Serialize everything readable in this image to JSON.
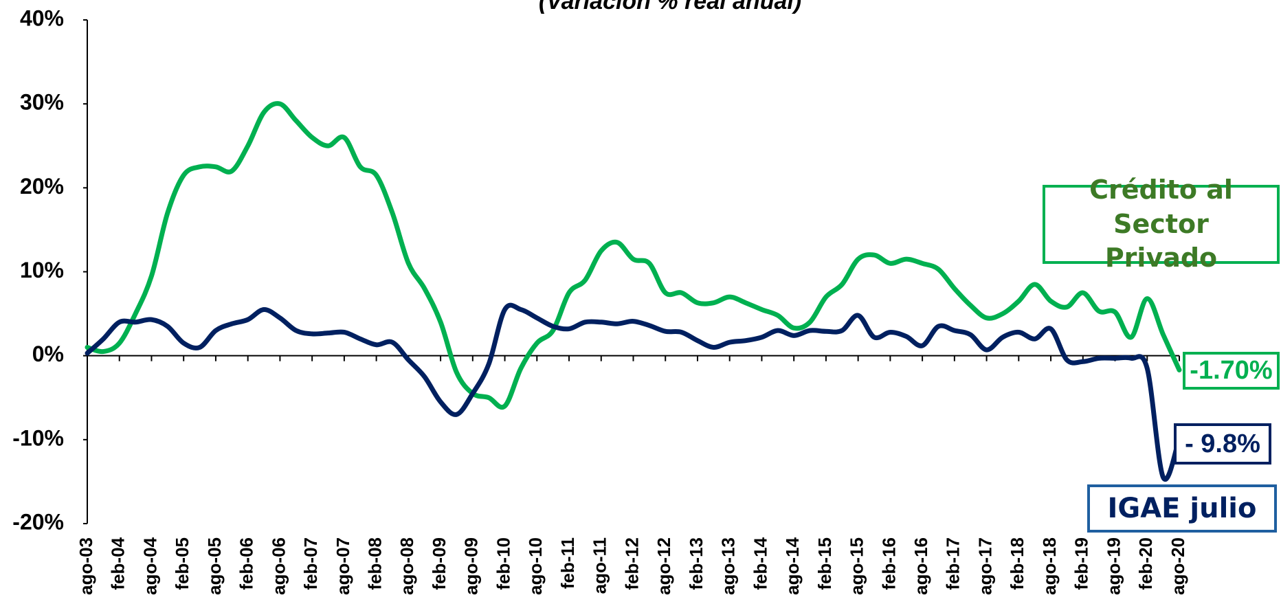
{
  "chart_data": {
    "type": "line",
    "subtitle": "(Variación % real anual)",
    "categories": [
      "ago-03",
      null,
      "feb-04",
      null,
      "ago-04",
      null,
      "feb-05",
      null,
      "ago-05",
      null,
      "feb-06",
      null,
      "ago-06",
      null,
      "feb-07",
      null,
      "ago-07",
      null,
      "feb-08",
      null,
      "ago-08",
      null,
      "feb-09",
      null,
      "ago-09",
      null,
      "feb-10",
      null,
      "ago-10",
      null,
      "feb-11",
      null,
      "ago-11",
      null,
      "feb-12",
      null,
      "ago-12",
      null,
      "feb-13",
      null,
      "ago-13",
      null,
      "feb-14",
      null,
      "ago-14",
      null,
      "feb-15",
      null,
      "ago-15",
      null,
      "feb-16",
      null,
      "ago-16",
      null,
      "feb-17",
      null,
      "ago-17",
      null,
      "feb-18",
      null,
      "ago-18",
      null,
      "feb-19",
      null,
      "ago-19",
      null,
      "feb-20",
      null,
      "ago-20"
    ],
    "series": [
      {
        "name": "Crédito al Sector Privado",
        "color": "#00b050",
        "label_color": "#3d7a26",
        "values": [
          1,
          0.5,
          1.5,
          5,
          9.5,
          17,
          21.5,
          22.5,
          22.5,
          22,
          25,
          29,
          30,
          28,
          26,
          25,
          26,
          22.5,
          21.5,
          17,
          11,
          8,
          4,
          -2,
          -4.5,
          -5,
          -6,
          -1.5,
          1.5,
          3,
          7.5,
          9,
          12.5,
          13.5,
          11.5,
          11,
          7.5,
          7.5,
          6.3,
          6.3,
          7,
          6.3,
          5.5,
          4.8,
          3.3,
          4,
          7,
          8.5,
          11.5,
          12,
          11,
          11.5,
          11,
          10.3,
          8,
          6,
          4.5,
          5,
          6.5,
          8.5,
          6.5,
          5.8,
          7.5,
          5.3,
          5.2,
          2.2,
          6.8,
          2.5,
          -1.7
        ],
        "value_labels": [
          null,
          null,
          null,
          null,
          null,
          null,
          null,
          null,
          null,
          null,
          null,
          null,
          null,
          null,
          null,
          null,
          null,
          null,
          null,
          null,
          null,
          null,
          null,
          null,
          null,
          null,
          null,
          null,
          null,
          null,
          null,
          null,
          null,
          null,
          null,
          null,
          null,
          null,
          null,
          null,
          null,
          null,
          null,
          null,
          null,
          null,
          null,
          null,
          null,
          null,
          null,
          null,
          null,
          null,
          null,
          null,
          null,
          null,
          null,
          null,
          null,
          null,
          null,
          null,
          null,
          null,
          null,
          null,
          "-1.70%"
        ]
      },
      {
        "name": "IGAE julio",
        "color": "#002060",
        "label_color": "#002060",
        "box_color": "#1f5fa0",
        "values": [
          0.3,
          2,
          4,
          4,
          4.3,
          3.5,
          1.5,
          1,
          3,
          3.8,
          4.3,
          5.5,
          4.5,
          3,
          2.6,
          2.7,
          2.8,
          2,
          1.3,
          1.6,
          -0.5,
          -2.5,
          -5.5,
          -7,
          -4.5,
          -1,
          5.5,
          5.5,
          4.5,
          3.5,
          3.2,
          4,
          4,
          3.8,
          4.1,
          3.6,
          2.9,
          2.8,
          1.8,
          1,
          1.6,
          1.8,
          2.2,
          3,
          2.4,
          3,
          2.9,
          3,
          4.8,
          2.2,
          2.8,
          2.3,
          1.2,
          3.5,
          3,
          2.5,
          0.7,
          2.2,
          2.8,
          2,
          3.2,
          -0.5,
          -0.7,
          -0.3,
          -0.3,
          -0.3,
          -1.5,
          -14.5,
          -9.8
        ],
        "value_labels": [
          null,
          null,
          null,
          null,
          null,
          null,
          null,
          null,
          null,
          null,
          null,
          null,
          null,
          null,
          null,
          null,
          null,
          null,
          null,
          null,
          null,
          null,
          null,
          null,
          null,
          null,
          null,
          null,
          null,
          null,
          null,
          null,
          null,
          null,
          null,
          null,
          null,
          null,
          null,
          null,
          null,
          null,
          null,
          null,
          null,
          null,
          null,
          null,
          null,
          null,
          null,
          null,
          null,
          null,
          null,
          null,
          null,
          null,
          null,
          null,
          null,
          null,
          null,
          null,
          null,
          null,
          null,
          null,
          "- 9.8%"
        ]
      }
    ],
    "ylim": [
      -20,
      40
    ],
    "yticks": [
      {
        "value": -20,
        "label": "-20%"
      },
      {
        "value": -10,
        "label": "-10%"
      },
      {
        "value": 0,
        "label": "0%"
      },
      {
        "value": 10,
        "label": "10%"
      },
      {
        "value": 20,
        "label": "20%"
      },
      {
        "value": 30,
        "label": "30%"
      },
      {
        "value": 40,
        "label": "40%"
      }
    ],
    "grid": false
  }
}
